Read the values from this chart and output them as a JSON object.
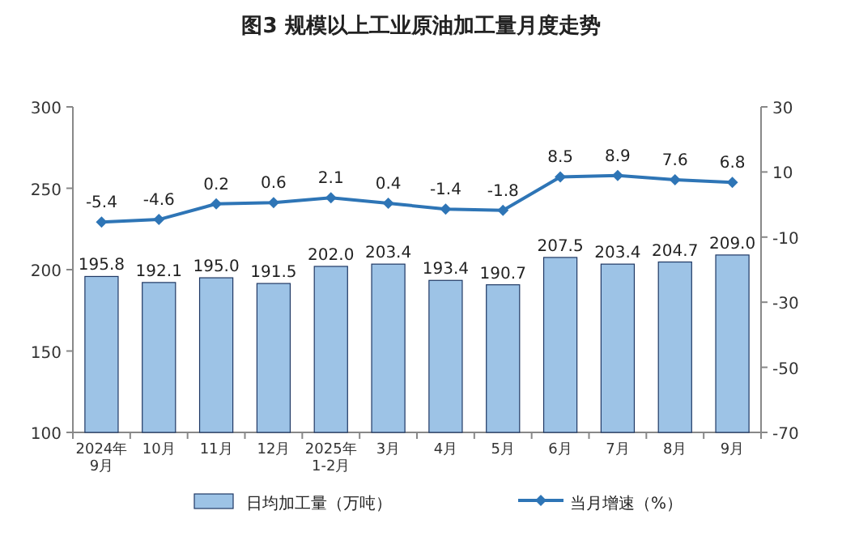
{
  "chart_data": {
    "type": "bar",
    "title": "图3  规模以上工业原油加工量月度走势",
    "categories": [
      "2024年\n9月",
      "10月",
      "11月",
      "12月",
      "2025年\n1-2月",
      "3月",
      "4月",
      "5月",
      "6月",
      "7月",
      "8月",
      "9月"
    ],
    "series": [
      {
        "name": "日均加工量（万吨）",
        "color": "#9dc3e6",
        "values": [
          195.8,
          192.1,
          195.0,
          191.5,
          202.0,
          203.4,
          193.4,
          190.7,
          207.5,
          203.4,
          204.7,
          209.0
        ],
        "value_labels": [
          "195.8",
          "192.1",
          "195.0",
          "191.5",
          "202.0",
          "203.4",
          "193.4",
          "190.7",
          "207.5",
          "203.4",
          "204.7",
          "209.0"
        ]
      },
      {
        "name": "当月增速（%）",
        "type": "line",
        "axis": "y2",
        "color": "#2e75b6",
        "marker": "diamond",
        "values": [
          -5.4,
          -4.6,
          0.2,
          0.6,
          2.1,
          0.4,
          -1.4,
          -1.8,
          8.5,
          8.9,
          7.6,
          6.8
        ]
      }
    ],
    "ylim": [
      100,
      300
    ],
    "yticks": [
      100,
      150,
      200,
      250,
      300
    ],
    "y2lim": [
      -70,
      30
    ],
    "y2ticks": [
      -70,
      -50,
      -30,
      -10,
      10,
      30
    ],
    "data_labels": true,
    "legend": "bottom",
    "grid": false
  }
}
